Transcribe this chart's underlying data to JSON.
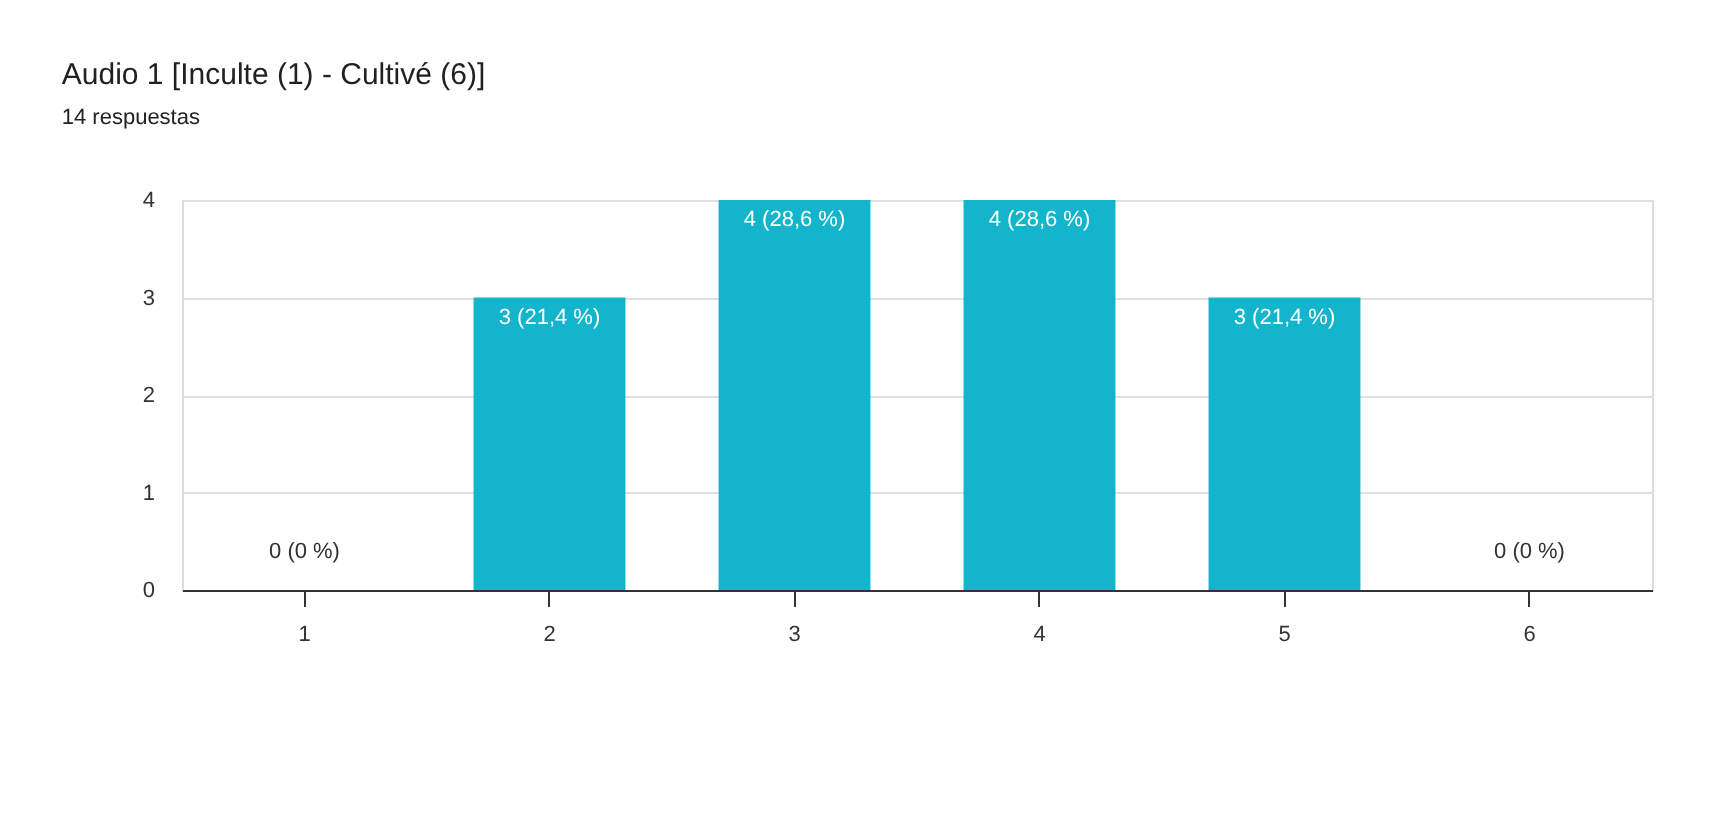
{
  "chart_data": {
    "type": "bar",
    "title": "Audio 1 [Inculte (1) - Cultivé (6)]",
    "subtitle": "14 respuestas",
    "categories": [
      "1",
      "2",
      "3",
      "4",
      "5",
      "6"
    ],
    "values": [
      0,
      3,
      4,
      4,
      3,
      0
    ],
    "value_labels": [
      "0 (0 %)",
      "3 (21,4 %)",
      "4 (28,6 %)",
      "4 (28,6 %)",
      "3 (21,4 %)",
      "0 (0 %)"
    ],
    "color": "#12b5cb",
    "ylim": [
      0,
      4
    ],
    "yticks": [
      0,
      1,
      2,
      3,
      4
    ],
    "grid": "y"
  }
}
